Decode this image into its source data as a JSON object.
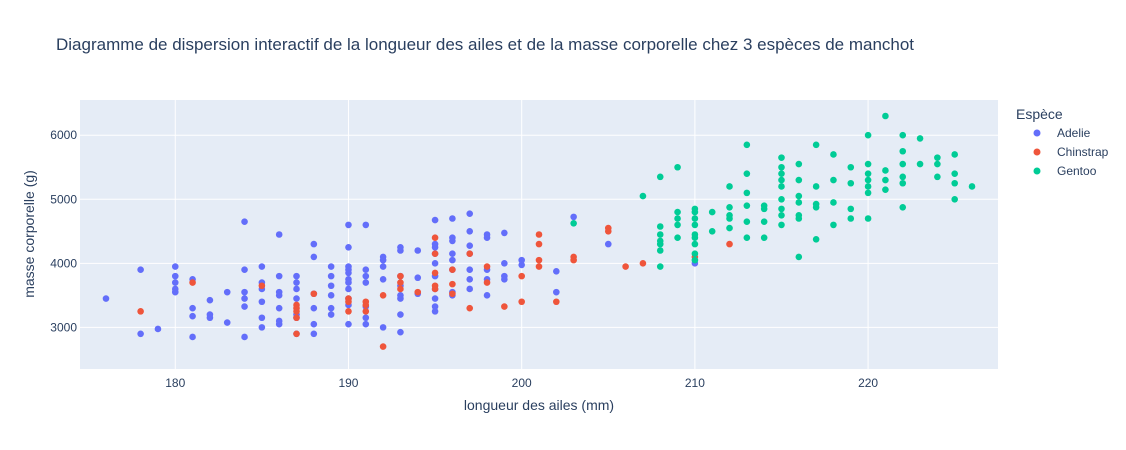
{
  "chart_data": {
    "type": "scatter",
    "title": "Diagramme de dispersion interactif de la longueur des ailes et de la masse corporelle chez 3 espèces de manchot",
    "xlabel": "longueur des ailes (mm)",
    "ylabel": "masse corporelle (g)",
    "xlim": [
      174.5,
      227.5
    ],
    "ylim": [
      2350,
      6550
    ],
    "x_ticks": [
      "180",
      "190",
      "200",
      "210",
      "220"
    ],
    "y_ticks": [
      "3000",
      "4000",
      "5000",
      "6000"
    ],
    "grid": true,
    "legend_position": "right",
    "legend_title": "Espèce",
    "series": [
      {
        "name": "Adelie",
        "color": "#636efa",
        "points": [
          [
            176,
            3450
          ],
          [
            178,
            3900
          ],
          [
            178,
            2900
          ],
          [
            179,
            2975
          ],
          [
            180,
            3950
          ],
          [
            180,
            3800
          ],
          [
            180,
            3700
          ],
          [
            180,
            3600
          ],
          [
            180,
            3550
          ],
          [
            181,
            3750
          ],
          [
            181,
            3300
          ],
          [
            181,
            3175
          ],
          [
            181,
            2850
          ],
          [
            182,
            3425
          ],
          [
            182,
            3200
          ],
          [
            182,
            3150
          ],
          [
            183,
            3550
          ],
          [
            183,
            3075
          ],
          [
            184,
            4650
          ],
          [
            184,
            3900
          ],
          [
            184,
            3550
          ],
          [
            184,
            3450
          ],
          [
            184,
            3325
          ],
          [
            184,
            2850
          ],
          [
            185,
            3950
          ],
          [
            185,
            3700
          ],
          [
            185,
            3600
          ],
          [
            185,
            3400
          ],
          [
            185,
            3150
          ],
          [
            185,
            3000
          ],
          [
            186,
            4450
          ],
          [
            186,
            3800
          ],
          [
            186,
            3550
          ],
          [
            186,
            3500
          ],
          [
            186,
            3300
          ],
          [
            186,
            3100
          ],
          [
            186,
            3050
          ],
          [
            187,
            3800
          ],
          [
            187,
            3700
          ],
          [
            187,
            3600
          ],
          [
            187,
            3450
          ],
          [
            187,
            3200
          ],
          [
            187,
            3150
          ],
          [
            187,
            2900
          ],
          [
            188,
            4300
          ],
          [
            188,
            4100
          ],
          [
            188,
            3525
          ],
          [
            188,
            3300
          ],
          [
            188,
            3050
          ],
          [
            188,
            2900
          ],
          [
            189,
            3950
          ],
          [
            189,
            3800
          ],
          [
            189,
            3650
          ],
          [
            189,
            3500
          ],
          [
            189,
            3300
          ],
          [
            189,
            3200
          ],
          [
            190,
            4600
          ],
          [
            190,
            4250
          ],
          [
            190,
            3950
          ],
          [
            190,
            3900
          ],
          [
            190,
            3850
          ],
          [
            190,
            3750
          ],
          [
            190,
            3700
          ],
          [
            190,
            3600
          ],
          [
            190,
            3450
          ],
          [
            190,
            3350
          ],
          [
            190,
            3050
          ],
          [
            191,
            4600
          ],
          [
            191,
            3900
          ],
          [
            191,
            3800
          ],
          [
            191,
            3700
          ],
          [
            191,
            3325
          ],
          [
            191,
            3150
          ],
          [
            191,
            3050
          ],
          [
            192,
            4100
          ],
          [
            192,
            4050
          ],
          [
            192,
            3950
          ],
          [
            192,
            3750
          ],
          [
            192,
            3000
          ],
          [
            193,
            4250
          ],
          [
            193,
            4200
          ],
          [
            193,
            3800
          ],
          [
            193,
            3650
          ],
          [
            193,
            3500
          ],
          [
            193,
            3450
          ],
          [
            193,
            3200
          ],
          [
            193,
            2925
          ],
          [
            194,
            4200
          ],
          [
            194,
            3775
          ],
          [
            194,
            3525
          ],
          [
            195,
            4675
          ],
          [
            195,
            4300
          ],
          [
            195,
            4250
          ],
          [
            195,
            4150
          ],
          [
            195,
            4000
          ],
          [
            195,
            3800
          ],
          [
            195,
            3600
          ],
          [
            195,
            3450
          ],
          [
            195,
            3325
          ],
          [
            195,
            3250
          ],
          [
            196,
            4700
          ],
          [
            196,
            4400
          ],
          [
            196,
            4350
          ],
          [
            196,
            4150
          ],
          [
            196,
            4050
          ],
          [
            196,
            3900
          ],
          [
            196,
            3550
          ],
          [
            196,
            3500
          ],
          [
            197,
            4775
          ],
          [
            197,
            4500
          ],
          [
            197,
            4275
          ],
          [
            197,
            4150
          ],
          [
            197,
            3900
          ],
          [
            197,
            3750
          ],
          [
            197,
            3600
          ],
          [
            198,
            4450
          ],
          [
            198,
            4400
          ],
          [
            198,
            3900
          ],
          [
            198,
            3750
          ],
          [
            198,
            3500
          ],
          [
            199,
            4475
          ],
          [
            199,
            4000
          ],
          [
            199,
            3800
          ],
          [
            199,
            3750
          ],
          [
            200,
            4050
          ],
          [
            200,
            3975
          ],
          [
            202,
            3875
          ],
          [
            202,
            3550
          ],
          [
            203,
            4725
          ],
          [
            205,
            4300
          ],
          [
            210,
            4000
          ]
        ]
      },
      {
        "name": "Chinstrap",
        "color": "#ef553b",
        "points": [
          [
            178,
            3250
          ],
          [
            181,
            3700
          ],
          [
            185,
            3650
          ],
          [
            187,
            3350
          ],
          [
            187,
            3300
          ],
          [
            187,
            3250
          ],
          [
            187,
            3150
          ],
          [
            187,
            2900
          ],
          [
            188,
            3525
          ],
          [
            190,
            3450
          ],
          [
            190,
            3400
          ],
          [
            190,
            3250
          ],
          [
            191,
            3400
          ],
          [
            191,
            3350
          ],
          [
            191,
            3250
          ],
          [
            192,
            3500
          ],
          [
            192,
            2700
          ],
          [
            193,
            3800
          ],
          [
            193,
            3700
          ],
          [
            193,
            3600
          ],
          [
            194,
            3550
          ],
          [
            195,
            4400
          ],
          [
            195,
            4150
          ],
          [
            195,
            3850
          ],
          [
            195,
            3650
          ],
          [
            195,
            3600
          ],
          [
            196,
            3900
          ],
          [
            196,
            3675
          ],
          [
            196,
            3525
          ],
          [
            197,
            4150
          ],
          [
            197,
            3300
          ],
          [
            198,
            3950
          ],
          [
            198,
            3700
          ],
          [
            199,
            3325
          ],
          [
            200,
            3800
          ],
          [
            200,
            3400
          ],
          [
            201,
            4450
          ],
          [
            201,
            4300
          ],
          [
            201,
            4050
          ],
          [
            201,
            3950
          ],
          [
            202,
            3400
          ],
          [
            203,
            4100
          ],
          [
            203,
            4050
          ],
          [
            205,
            4550
          ],
          [
            205,
            4500
          ],
          [
            206,
            3950
          ],
          [
            207,
            4000
          ],
          [
            210,
            4100
          ],
          [
            212,
            4300
          ]
        ]
      },
      {
        "name": "Gentoo",
        "color": "#00cc96",
        "points": [
          [
            203,
            4625
          ],
          [
            207,
            5050
          ],
          [
            208,
            5350
          ],
          [
            208,
            4575
          ],
          [
            208,
            4450
          ],
          [
            208,
            4350
          ],
          [
            208,
            4300
          ],
          [
            208,
            4200
          ],
          [
            208,
            3950
          ],
          [
            209,
            5500
          ],
          [
            209,
            4800
          ],
          [
            209,
            4700
          ],
          [
            209,
            4600
          ],
          [
            209,
            4400
          ],
          [
            210,
            4850
          ],
          [
            210,
            4800
          ],
          [
            210,
            4700
          ],
          [
            210,
            4600
          ],
          [
            210,
            4450
          ],
          [
            210,
            4400
          ],
          [
            210,
            4300
          ],
          [
            210,
            4150
          ],
          [
            210,
            4050
          ],
          [
            211,
            4800
          ],
          [
            211,
            4500
          ],
          [
            212,
            5200
          ],
          [
            212,
            4875
          ],
          [
            212,
            4750
          ],
          [
            212,
            4700
          ],
          [
            212,
            4550
          ],
          [
            213,
            5850
          ],
          [
            213,
            5400
          ],
          [
            213,
            5100
          ],
          [
            213,
            4900
          ],
          [
            213,
            4650
          ],
          [
            213,
            4400
          ],
          [
            214,
            4900
          ],
          [
            214,
            4850
          ],
          [
            214,
            4650
          ],
          [
            214,
            4400
          ],
          [
            215,
            5650
          ],
          [
            215,
            5500
          ],
          [
            215,
            5400
          ],
          [
            215,
            5300
          ],
          [
            215,
            5200
          ],
          [
            215,
            5000
          ],
          [
            215,
            4850
          ],
          [
            215,
            4750
          ],
          [
            215,
            4600
          ],
          [
            216,
            5550
          ],
          [
            216,
            5300
          ],
          [
            216,
            5050
          ],
          [
            216,
            4950
          ],
          [
            216,
            4750
          ],
          [
            216,
            4700
          ],
          [
            216,
            4100
          ],
          [
            217,
            5850
          ],
          [
            217,
            5200
          ],
          [
            217,
            4925
          ],
          [
            217,
            4875
          ],
          [
            217,
            4375
          ],
          [
            218,
            5700
          ],
          [
            218,
            5300
          ],
          [
            218,
            4950
          ],
          [
            218,
            4600
          ],
          [
            219,
            5500
          ],
          [
            219,
            5250
          ],
          [
            219,
            4850
          ],
          [
            219,
            4700
          ],
          [
            220,
            6000
          ],
          [
            220,
            5550
          ],
          [
            220,
            5400
          ],
          [
            220,
            5300
          ],
          [
            220,
            5200
          ],
          [
            220,
            5100
          ],
          [
            220,
            4700
          ],
          [
            221,
            6300
          ],
          [
            221,
            5450
          ],
          [
            221,
            5300
          ],
          [
            221,
            5150
          ],
          [
            222,
            6000
          ],
          [
            222,
            5750
          ],
          [
            222,
            5550
          ],
          [
            222,
            5350
          ],
          [
            222,
            5250
          ],
          [
            222,
            4875
          ],
          [
            223,
            5950
          ],
          [
            223,
            5550
          ],
          [
            224,
            5650
          ],
          [
            224,
            5550
          ],
          [
            224,
            5350
          ],
          [
            225,
            5700
          ],
          [
            225,
            5400
          ],
          [
            225,
            5250
          ],
          [
            225,
            5000
          ],
          [
            226,
            5200
          ]
        ]
      }
    ]
  }
}
